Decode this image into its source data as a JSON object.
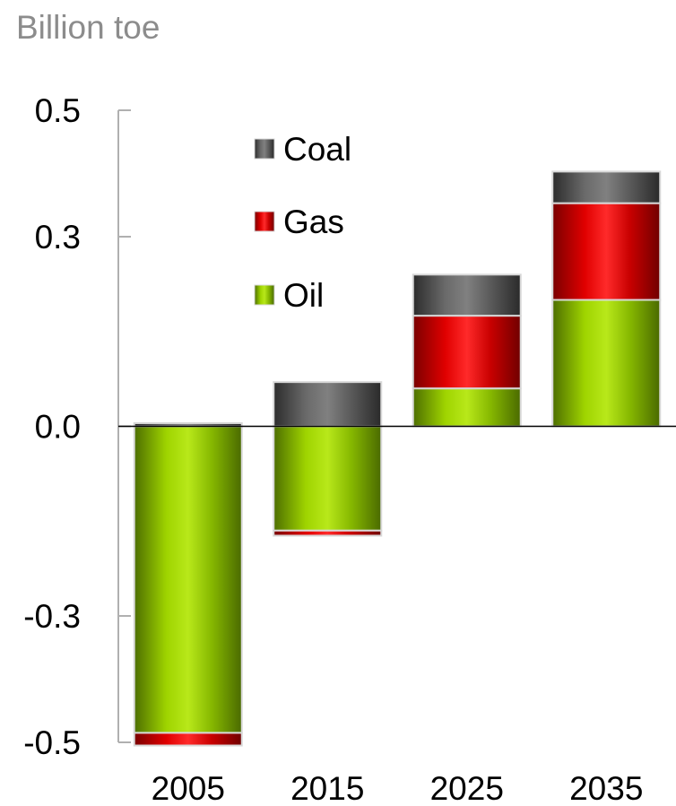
{
  "unit_label": "Billion toe",
  "chart_data": {
    "type": "bar",
    "stacked": true,
    "categories": [
      "2005",
      "2015",
      "2025",
      "2035"
    ],
    "series": [
      {
        "name": "Oil",
        "values": [
          -0.485,
          -0.165,
          0.06,
          0.2
        ]
      },
      {
        "name": "Gas",
        "values": [
          -0.02,
          -0.008,
          0.115,
          0.153
        ]
      },
      {
        "name": "Coal",
        "values": [
          0.005,
          0.07,
          0.065,
          0.05
        ]
      }
    ],
    "yticks": [
      0.5,
      0.3,
      0.0,
      -0.3,
      -0.5
    ],
    "ytick_labels": [
      "0.5",
      "0.3",
      "0.0",
      "-0.3",
      "-0.5"
    ],
    "ylim": [
      -0.5,
      0.5
    ],
    "ylabel": "Billion toe",
    "legend_position": "top-left",
    "legend_order": [
      "Coal",
      "Gas",
      "Oil"
    ],
    "colors": {
      "Oil": "#86b800",
      "Gas": "#d40000",
      "Coal": "#5a5a5a"
    }
  }
}
